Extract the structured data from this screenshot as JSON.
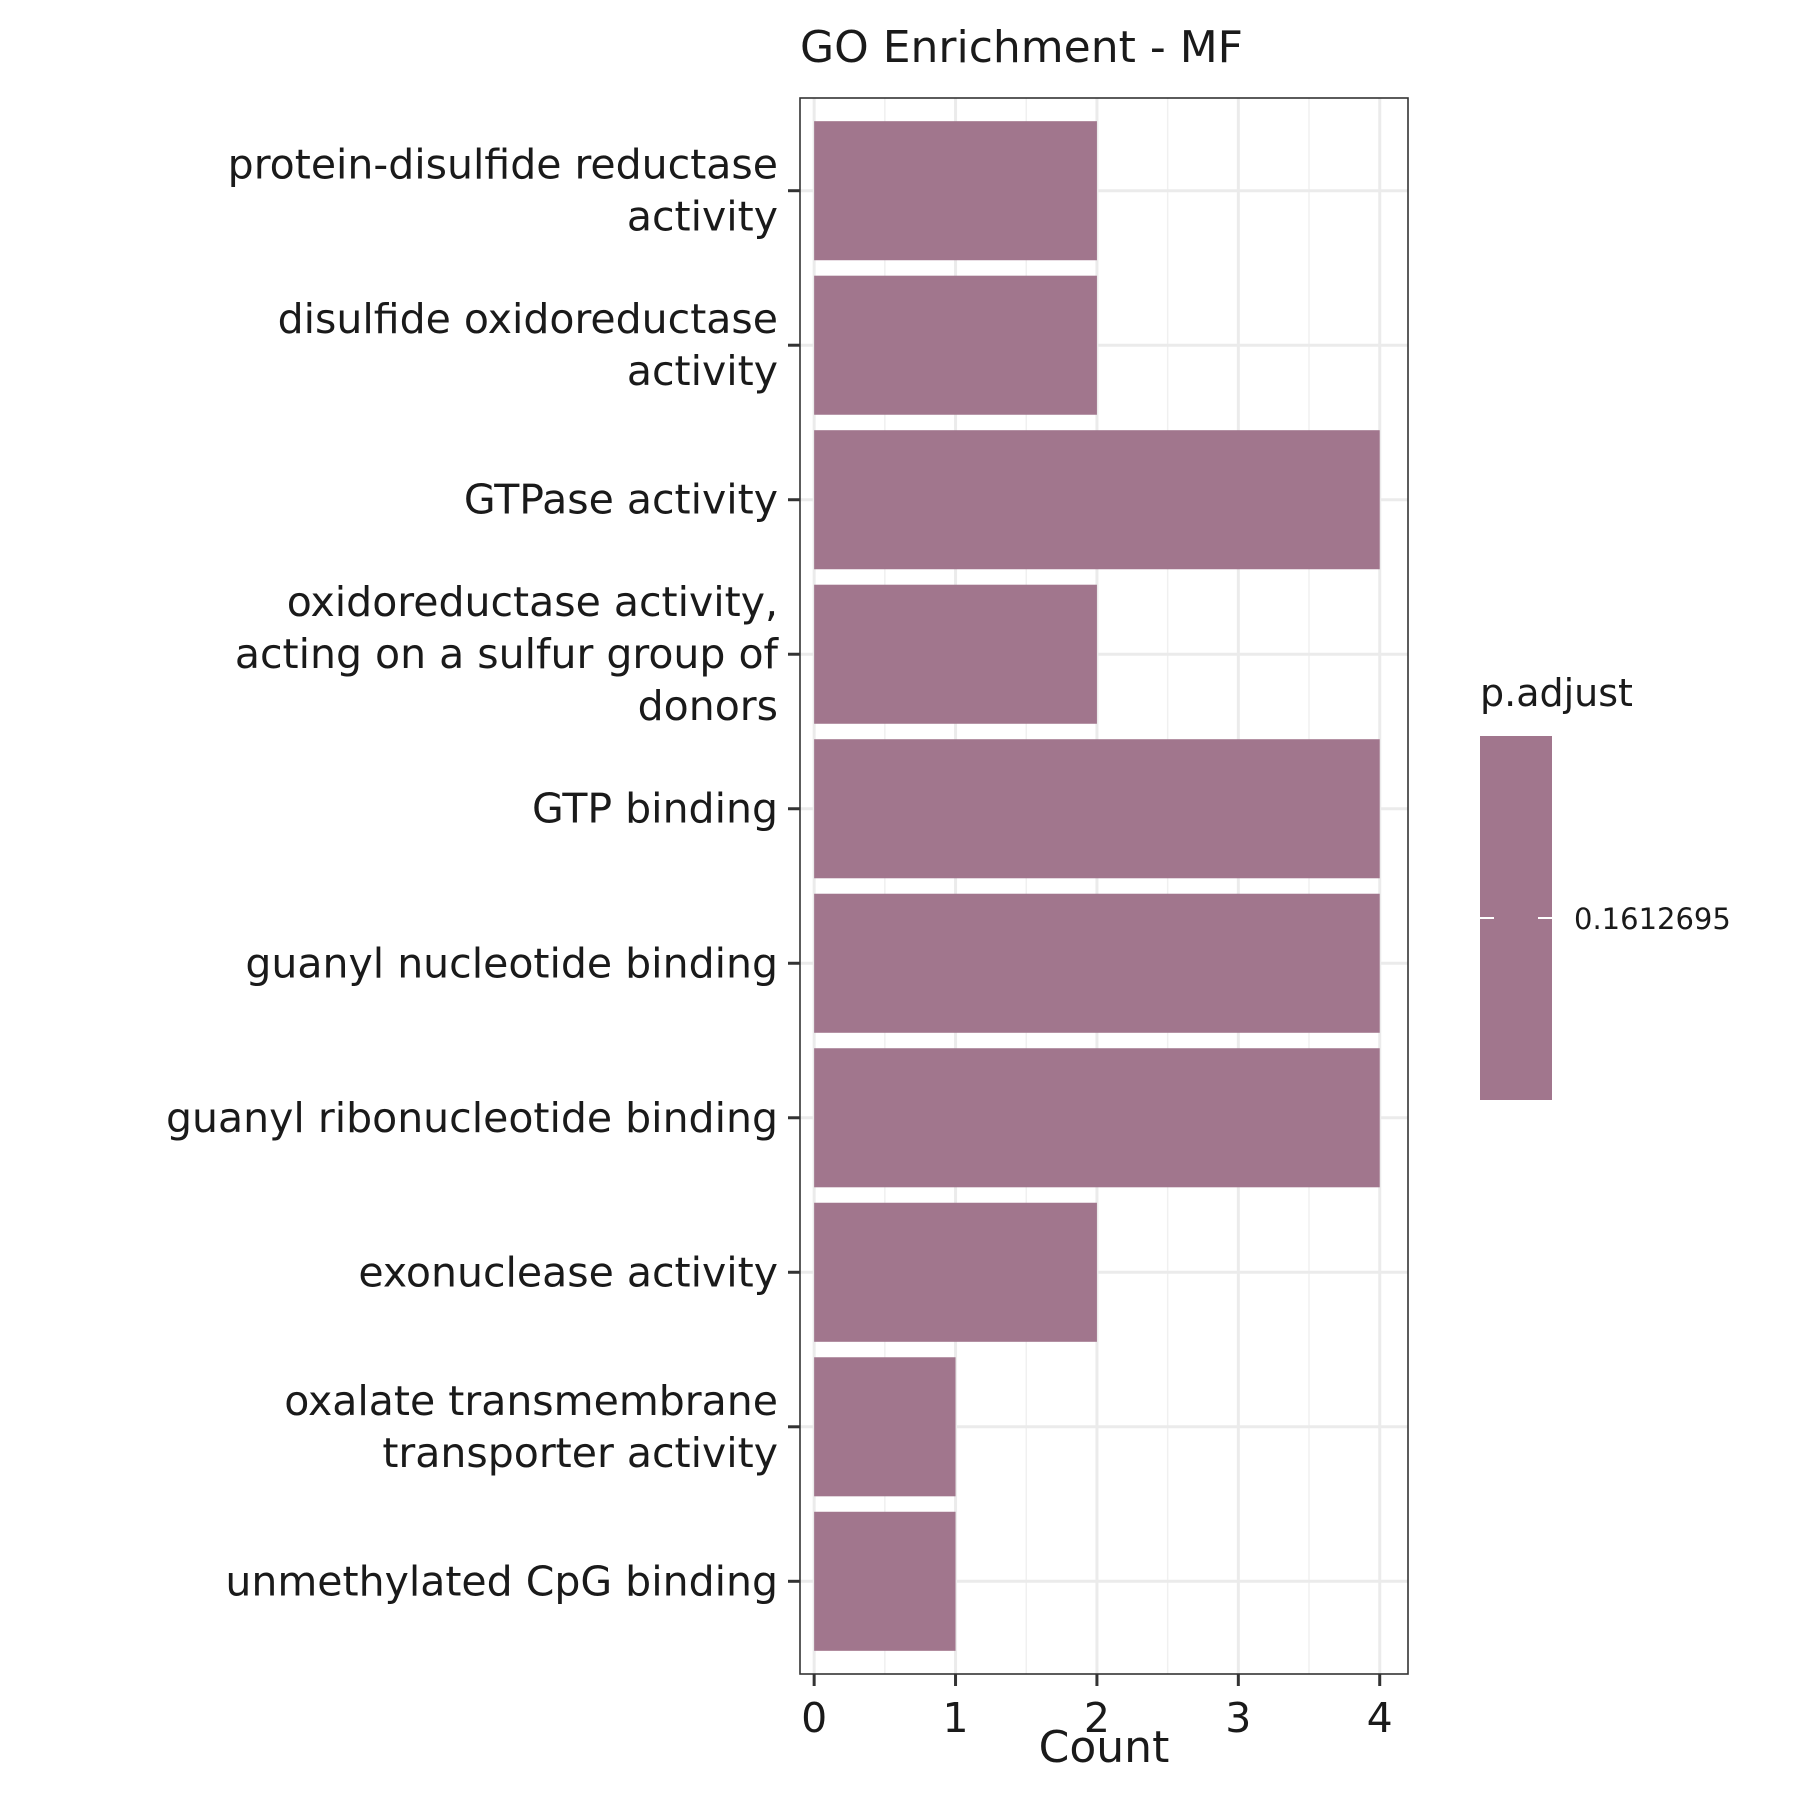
{
  "chart_data": {
    "type": "bar",
    "orientation": "horizontal",
    "title": "GO Enrichment - MF",
    "xlabel": "Count",
    "ylabel": "",
    "xlim": [
      0,
      4.2
    ],
    "xticks": [
      "0",
      "1",
      "2",
      "3",
      "4"
    ],
    "grid": true,
    "categories": [
      [
        "protein-disulfide reductase",
        "activity"
      ],
      [
        "disulfide oxidoreductase",
        "activity"
      ],
      [
        "GTPase activity"
      ],
      [
        "oxidoreductase activity,",
        "acting on a sulfur group of",
        "donors"
      ],
      [
        "GTP binding"
      ],
      [
        "guanyl nucleotide binding"
      ],
      [
        "guanyl ribonucleotide binding"
      ],
      [
        "exonuclease activity"
      ],
      [
        "oxalate transmembrane",
        "transporter activity"
      ],
      [
        "unmethylated CpG binding"
      ]
    ],
    "values": [
      2,
      2,
      4,
      2,
      4,
      4,
      4,
      2,
      1,
      1
    ],
    "bar_color": "#A1768D",
    "legend": {
      "title": "p.adjust",
      "label": "0.1612695",
      "color": "#A1768D",
      "placement": "right"
    }
  }
}
